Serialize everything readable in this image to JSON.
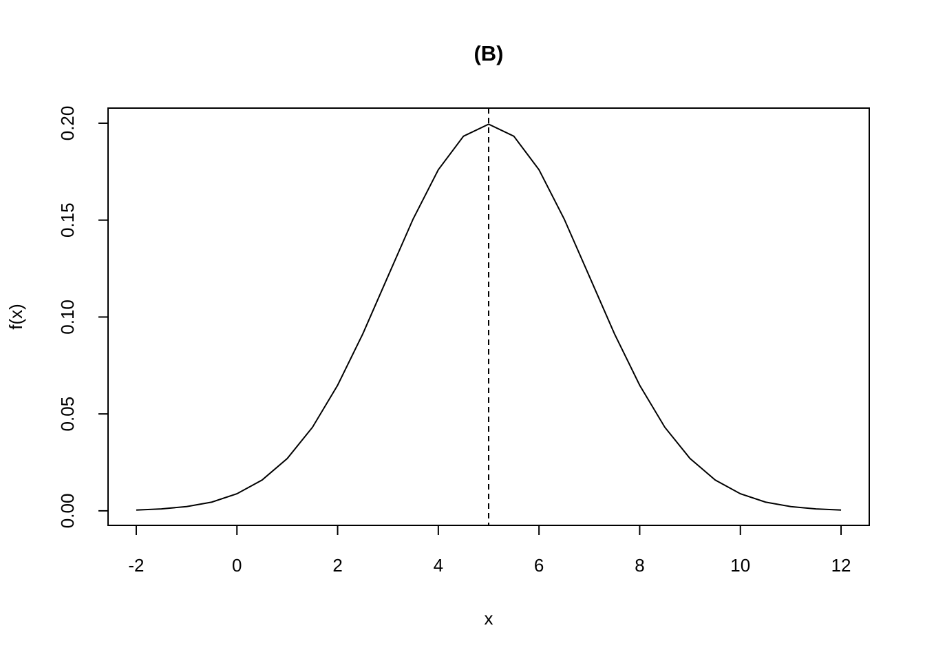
{
  "chart_data": {
    "type": "line",
    "title": "(B)",
    "x_label": "x",
    "y_label": "f(x)",
    "x": [
      -2,
      -1.5,
      -1,
      -0.5,
      0,
      0.5,
      1,
      1.5,
      2,
      2.5,
      3,
      3.5,
      4,
      4.5,
      5,
      5.5,
      6,
      6.5,
      7,
      7.5,
      8,
      8.5,
      9,
      9.5,
      10,
      10.5,
      11,
      11.5,
      12
    ],
    "values": [
      0.0004,
      0.001,
      0.0022,
      0.0045,
      0.0088,
      0.0159,
      0.027,
      0.0431,
      0.0648,
      0.0913,
      0.121,
      0.1506,
      0.176,
      0.1933,
      0.1995,
      0.1933,
      0.176,
      0.1506,
      0.121,
      0.0913,
      0.0648,
      0.0431,
      0.027,
      0.0159,
      0.0088,
      0.0045,
      0.0022,
      0.001,
      0.0004
    ],
    "color": "#000000",
    "vline": 5,
    "xlim": [
      -2.56,
      12.56
    ],
    "xticks": [
      -2,
      0,
      2,
      4,
      6,
      8,
      10,
      12
    ],
    "ylim": [
      -0.0075,
      0.2078
    ],
    "yticks": [
      {
        "value": 0,
        "label": "0.00"
      },
      {
        "value": 0.05,
        "label": "0.05"
      },
      {
        "value": 0.1,
        "label": "0.10"
      },
      {
        "value": 0.15,
        "label": "0.15"
      },
      {
        "value": 0.2,
        "label": "0.20"
      }
    ]
  }
}
